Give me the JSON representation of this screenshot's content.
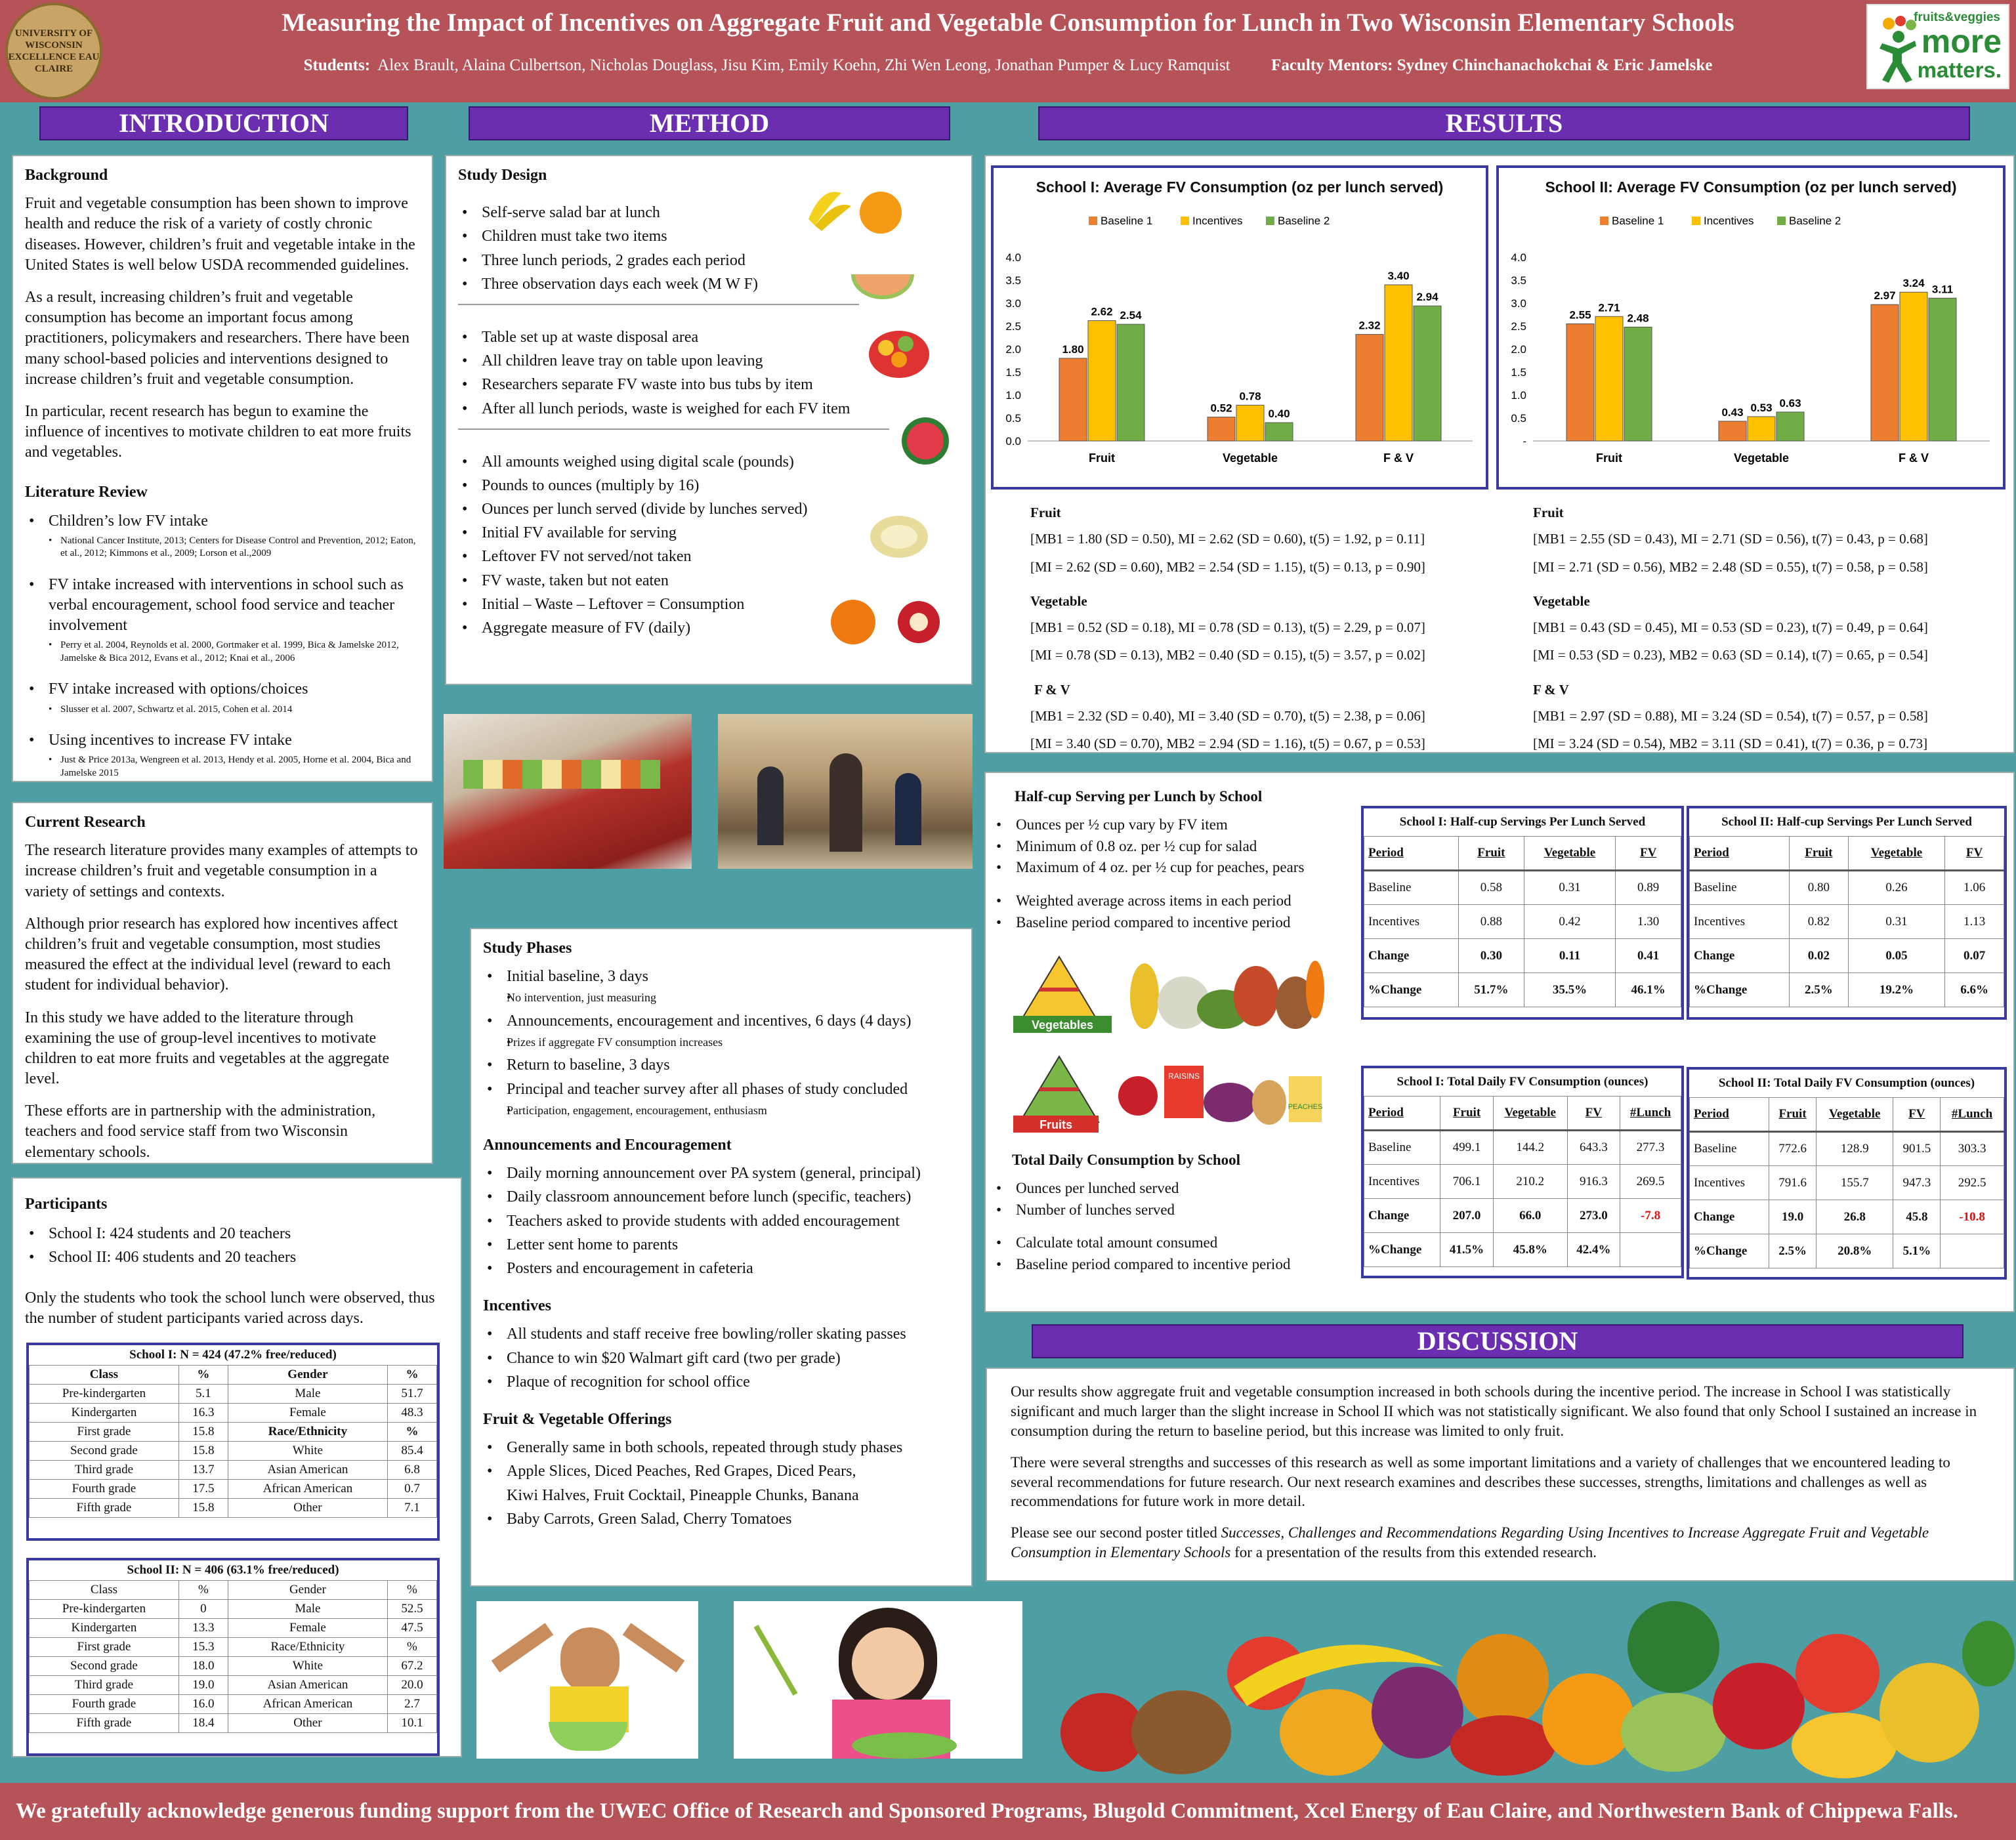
{
  "header": {
    "title": "Measuring the Impact of Incentives on Aggregate Fruit and Vegetable Consumption for Lunch in Two Wisconsin Elementary Schools",
    "students_label": "Students:",
    "students": "Alex Brault, Alaina Culbertson, Nicholas Douglass, Jisu Kim, Emily Koehn, Zhi Wen Leong, Jonathan Pumper & Lucy Ramquist",
    "mentors_label": "Faculty Mentors:",
    "mentors": "Sydney Chinchanachokchai & Eric Jamelske",
    "seal_text": "UNIVERSITY OF WISCONSIN EXCELLENCE EAU CLAIRE",
    "logo": {
      "l1": "fruits&veggies",
      "l2": "more",
      "l3": "matters."
    }
  },
  "sections": {
    "intro": "INTRODUCTION",
    "method": "METHOD",
    "results": "RESULTS",
    "discussion": "DISCUSSION"
  },
  "background": {
    "h": "Background",
    "p1": "Fruit and vegetable consumption has been shown to improve health and reduce the risk of a variety of costly chronic diseases. However, children’s fruit and vegetable intake in the United States is well below USDA recommended guidelines.",
    "p2": "As a result, increasing children’s fruit and vegetable consumption has become an important focus among practitioners, policymakers and researchers. There have been many school-based policies and interventions designed to increase children’s fruit and vegetable consumption.",
    "p3": "In particular, recent research has begun to examine the influence of incentives to motivate children to eat more fruits and vegetables."
  },
  "lit": {
    "h": "Literature Review",
    "i1": "Children’s low FV intake",
    "r1": "National Cancer Institute, 2013; Centers for Disease Control and Prevention, 2012; Eaton, et al., 2012; Kimmons et al., 2009; Lorson et al.,2009",
    "i2": "FV intake increased with interventions in school such as verbal encouragement, school food service and teacher involvement",
    "r2": "Perry et al. 2004, Reynolds et al. 2000, Gortmaker et al. 1999, Bica & Jamelske 2012, Jamelske & Bica 2012, Evans et al., 2012; Knai et al., 2006",
    "i3": "FV intake increased with options/choices",
    "r3": "Slusser et al. 2007, Schwartz et al. 2015, Cohen et al. 2014",
    "i4": "Using incentives to increase FV intake",
    "r4": "Just & Price 2013a, Wengreen et al. 2013, Hendy et al. 2005, Horne et al. 2004, Bica and Jamelske 2015"
  },
  "current": {
    "h": "Current Research",
    "p1": "The research literature provides many examples of attempts to increase children’s fruit and vegetable consumption in a variety of settings and contexts.",
    "p2": "Although prior research has explored how incentives affect children’s fruit and vegetable consumption, most studies measured the effect at the individual level (reward to each student for individual behavior).",
    "p3": "In this study we have added to the literature through examining the use of group-level incentives to motivate children to eat more fruits and vegetables at the aggregate level.",
    "p4": "These efforts are in partnership with the administration, teachers and food service staff from two Wisconsin elementary schools."
  },
  "participants": {
    "h": "Participants",
    "i1": "School I: 424 students and 20 teachers",
    "i2": "School II: 406 students and 20 teachers",
    "p": "Only the students who took the school lunch were observed, thus the number of student participants varied across days.",
    "s1_title": "School I: N = 424 (47.2% free/reduced)",
    "s2_title": "School II: N = 406 (63.1% free/reduced)",
    "s1": [
      [
        "Class",
        "%",
        "Gender",
        "%"
      ],
      [
        "Pre-kindergarten",
        "5.1",
        "Male",
        "51.7"
      ],
      [
        "Kindergarten",
        "16.3",
        "Female",
        "48.3"
      ],
      [
        "First grade",
        "15.8",
        "Race/Ethnicity",
        "%"
      ],
      [
        "Second grade",
        "15.8",
        "White",
        "85.4"
      ],
      [
        "Third grade",
        "13.7",
        "Asian American",
        "6.8"
      ],
      [
        "Fourth grade",
        "17.5",
        "African American",
        "0.7"
      ],
      [
        "Fifth grade",
        "15.8",
        "Other",
        "7.1"
      ]
    ],
    "s2": [
      [
        "Class",
        "%",
        "Gender",
        "%"
      ],
      [
        "Pre-kindergarten",
        "0",
        "Male",
        "52.5"
      ],
      [
        "Kindergarten",
        "13.3",
        "Female",
        "47.5"
      ],
      [
        "First grade",
        "15.3",
        "Race/Ethnicity",
        "%"
      ],
      [
        "Second grade",
        "18.0",
        "White",
        "67.2"
      ],
      [
        "Third grade",
        "19.0",
        "Asian American",
        "20.0"
      ],
      [
        "Fourth grade",
        "16.0",
        "African American",
        "2.7"
      ],
      [
        "Fifth grade",
        "18.4",
        "Other",
        "10.1"
      ]
    ]
  },
  "design": {
    "h": "Study Design",
    "a": [
      "Self-serve salad bar at lunch",
      "Children must take two items",
      "Three lunch periods, 2 grades each period",
      "Three observation days each week (M W F)"
    ],
    "b": [
      "Table set up at waste disposal area",
      "All children leave tray on table upon leaving",
      "Researchers separate FV waste into bus tubs by item",
      "After all lunch periods, waste is weighed for each FV item"
    ],
    "c": [
      "All amounts weighed using digital scale (pounds)",
      "Pounds to ounces (multiply by 16)",
      "Ounces per lunch served (divide by lunches served)",
      "Initial FV available for serving",
      "Leftover FV not served/not taken",
      "FV waste, taken but not eaten",
      "Initial – Waste – Leftover = Consumption",
      "Aggregate measure of FV (daily)"
    ]
  },
  "phases": {
    "h": "Study Phases",
    "p1": "Initial baseline, 3 days",
    "p1s": "No intervention, just measuring",
    "p2": "Announcements, encouragement and incentives, 6 days (4 days)",
    "p2s": "Prizes if aggregate FV consumption increases",
    "p3": "Return to baseline, 3 days",
    "p4": "Principal and teacher survey after all phases of study concluded",
    "p4s": "Participation, engagement, encouragement, enthusiasm",
    "h2": "Announcements and Encouragement",
    "a": [
      "Daily morning announcement over PA system (general, principal)",
      "Daily classroom announcement before lunch (specific, teachers)",
      "Teachers asked to provide students with added encouragement",
      "Letter sent home to parents",
      "Posters and encouragement in cafeteria"
    ],
    "h3": "Incentives",
    "b": [
      "All students and staff receive free bowling/roller skating passes",
      "Chance to win $20 Walmart gift card (two per grade)",
      "Plaque of recognition for school office"
    ],
    "h4": "Fruit & Vegetable Offerings",
    "c1": "Generally same in both schools, repeated through study phases",
    "c2": "Apple Slices, Diced Peaches, Red Grapes, Diced Pears,",
    "c2b": "Kiwi Halves, Fruit Cocktail, Pineapple Chunks, Banana",
    "c3": "Baby Carrots, Green Salad, Cherry Tomatoes"
  },
  "chart_data": [
    {
      "type": "bar",
      "title": "School I: Average FV Consumption (oz per lunch served)",
      "categories": [
        "Fruit",
        "Vegetable",
        "F & V"
      ],
      "ylim": [
        0,
        4
      ],
      "yticks": [
        "0.0",
        "0.5",
        "1.0",
        "1.5",
        "2.0",
        "2.5",
        "3.0",
        "3.5",
        "4.0"
      ],
      "series": [
        {
          "name": "Baseline 1",
          "color": "#ed7d31",
          "values": [
            1.8,
            0.52,
            2.32
          ],
          "labels": [
            "1.80",
            "0.52",
            "2.32"
          ]
        },
        {
          "name": "Incentives",
          "color": "#ffc000",
          "values": [
            2.62,
            0.78,
            3.4
          ],
          "labels": [
            "2.62",
            "0.78",
            "3.40"
          ]
        },
        {
          "name": "Baseline 2",
          "color": "#70ad47",
          "values": [
            2.54,
            0.4,
            2.94
          ],
          "labels": [
            "2.54",
            "0.40",
            "2.94"
          ]
        }
      ]
    },
    {
      "type": "bar",
      "title": "School II: Average FV Consumption (oz per lunch served)",
      "categories": [
        "Fruit",
        "Vegetable",
        "F & V"
      ],
      "ylim": [
        0,
        4
      ],
      "yticks": [
        "-",
        "0.5",
        "1.0",
        "1.5",
        "2.0",
        "2.5",
        "3.0",
        "3.5",
        "4.0"
      ],
      "series": [
        {
          "name": "Baseline 1",
          "color": "#ed7d31",
          "values": [
            2.55,
            0.43,
            2.97
          ],
          "labels": [
            "2.55",
            "0.43",
            "2.97"
          ]
        },
        {
          "name": "Incentives",
          "color": "#ffc000",
          "values": [
            2.71,
            0.53,
            3.24
          ],
          "labels": [
            "2.71",
            "0.53",
            "3.24"
          ]
        },
        {
          "name": "Baseline 2",
          "color": "#70ad47",
          "values": [
            2.48,
            0.63,
            3.11
          ],
          "labels": [
            "2.48",
            "0.63",
            "3.11"
          ]
        }
      ]
    }
  ],
  "stats1": {
    "h1": "Fruit",
    "f1": "[MB1 = 1.80 (SD = 0.50), MI = 2.62 (SD = 0.60), t(5) = 1.92, p = 0.11]",
    "f2": "[MI = 2.62 (SD = 0.60), MB2 = 2.54 (SD = 1.15), t(5) = 0.13, p = 0.90]",
    "h2": "Vegetable",
    "v1": "[MB1 = 0.52 (SD = 0.18), MI = 0.78 (SD = 0.13), t(5) = 2.29, p = 0.07]",
    "v2": "[MI = 0.78 (SD = 0.13), MB2 = 0.40 (SD = 0.15), t(5) = 3.57, p = 0.02]",
    "h3": "F & V",
    "b1": "[MB1 = 2.32 (SD = 0.40), MI = 3.40 (SD = 0.70), t(5) = 2.38, p = 0.06]",
    "b2": "[MI = 3.40 (SD = 0.70), MB2 = 2.94 (SD = 1.16), t(5) = 0.67, p = 0.53]"
  },
  "stats2": {
    "h1": "Fruit",
    "f1": "[MB1 = 2.55 (SD = 0.43), MI = 2.71 (SD = 0.56), t(7) = 0.43, p = 0.68]",
    "f2": "[MI = 2.71 (SD = 0.56), MB2 = 2.48 (SD = 0.55), t(7) = 0.58, p = 0.58]",
    "h2": "Vegetable",
    "v1": "[MB1 = 0.43 (SD = 0.45), MI = 0.53 (SD = 0.23), t(7) = 0.49, p = 0.64]",
    "v2": "[MI = 0.53 (SD = 0.23), MB2 = 0.63 (SD = 0.14), t(7) = 0.65, p = 0.54]",
    "h3": "F & V",
    "b1": "[MB1 = 2.97 (SD = 0.88), MI = 3.24 (SD = 0.54), t(7) = 0.57, p = 0.58]",
    "b2": "[MI = 3.24 (SD = 0.54), MB2 = 3.11 (SD = 0.41), t(7) = 0.36, p = 0.73]"
  },
  "halfcup": {
    "h": "Half-cup Serving per Lunch by School",
    "a": [
      "Ounces per ½ cup vary by FV item",
      "Minimum of 0.8 oz. per ½ cup for salad",
      "Maximum of 4 oz. per ½ cup for peaches, pears"
    ],
    "b": [
      "Weighted average across items in each period",
      "Baseline period compared to incentive period"
    ],
    "veg_label": "Vegetables",
    "fruit_label": "Fruits",
    "raisins": "RAISINS",
    "peaches": "PEACHES"
  },
  "total": {
    "h": "Total Daily Consumption by School",
    "a": [
      "Ounces per lunched served",
      "Number of lunches served"
    ],
    "b": [
      "Calculate total amount consumed",
      "Baseline period compared to incentive period"
    ]
  },
  "hc1": {
    "title": "School I: Half-cup Servings Per Lunch Served",
    "rows": [
      [
        "Period",
        "Fruit",
        "Vegetable",
        "FV"
      ],
      [
        "Baseline",
        "0.58",
        "0.31",
        "0.89"
      ],
      [
        "Incentives",
        "0.88",
        "0.42",
        "1.30"
      ],
      [
        "Change",
        "0.30",
        "0.11",
        "0.41"
      ],
      [
        "%Change",
        "51.7%",
        "35.5%",
        "46.1%"
      ]
    ]
  },
  "hc2": {
    "title": "School II: Half-cup Servings Per Lunch Served",
    "rows": [
      [
        "Period",
        "Fruit",
        "Vegetable",
        "FV"
      ],
      [
        "Baseline",
        "0.80",
        "0.26",
        "1.06"
      ],
      [
        "Incentives",
        "0.82",
        "0.31",
        "1.13"
      ],
      [
        "Change",
        "0.02",
        "0.05",
        "0.07"
      ],
      [
        "%Change",
        "2.5%",
        "19.2%",
        "6.6%"
      ]
    ]
  },
  "td1": {
    "title": "School I: Total Daily FV Consumption (ounces)",
    "rows": [
      [
        "Period",
        "Fruit",
        "Vegetable",
        "FV",
        "#Lunch"
      ],
      [
        "Baseline",
        "499.1",
        "144.2",
        "643.3",
        "277.3"
      ],
      [
        "Incentives",
        "706.1",
        "210.2",
        "916.3",
        "269.5"
      ],
      [
        "Change",
        "207.0",
        "66.0",
        "273.0",
        "-7.8"
      ],
      [
        "%Change",
        "41.5%",
        "45.8%",
        "42.4%",
        ""
      ]
    ]
  },
  "td2": {
    "title": "School II: Total Daily FV Consumption (ounces)",
    "rows": [
      [
        "Period",
        "Fruit",
        "Vegetable",
        "FV",
        "#Lunch"
      ],
      [
        "Baseline",
        "772.6",
        "128.9",
        "901.5",
        "303.3"
      ],
      [
        "Incentives",
        "791.6",
        "155.7",
        "947.3",
        "292.5"
      ],
      [
        "Change",
        "19.0",
        "26.8",
        "45.8",
        "-10.8"
      ],
      [
        "%Change",
        "2.5%",
        "20.8%",
        "5.1%",
        ""
      ]
    ]
  },
  "discussion": {
    "p1": "Our results show aggregate fruit and vegetable consumption increased in both schools during the incentive period. The increase in School I was statistically significant and much larger than the slight increase in School II which was not statistically significant. We also found that only School I sustained an increase in consumption during the return to baseline period, but this increase was limited to only fruit.",
    "p2": "There were several strengths and successes of this research as well as some important limitations and a variety of challenges that we encountered leading to several recommendations for future research. Our next research examines and describes these successes, strengths, limitations and challenges as well as recommendations for future work in more detail.",
    "p3a": "Please see our second poster titled ",
    "p3i": "Successes, Challenges and Recommendations Regarding Using Incentives to Increase Aggregate Fruit and Vegetable Consumption in Elementary Schools",
    "p3b": " for a presentation of the results from this extended research."
  },
  "footer": "We gratefully acknowledge generous funding support from the UWEC Office of Research and Sponsored Programs, Blugold Commitment, Xcel Energy of Eau Claire, and Northwestern Bank of Chippewa Falls."
}
